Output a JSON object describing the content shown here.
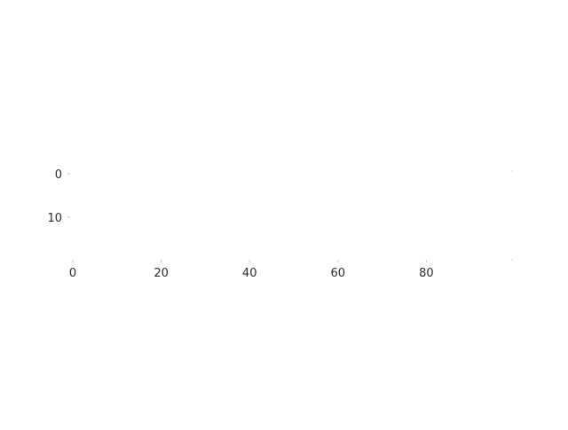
{
  "chart_data": {
    "type": "line",
    "title": "",
    "xlabel": "",
    "ylabel": "",
    "x_ticks": [
      0,
      20,
      40,
      60,
      80
    ],
    "y_ticks": [
      0,
      10
    ],
    "xlim": [
      0,
      100
    ],
    "ylim": [
      0,
      20
    ],
    "y_inverted": true,
    "grid": false,
    "legend": "none",
    "series": []
  }
}
